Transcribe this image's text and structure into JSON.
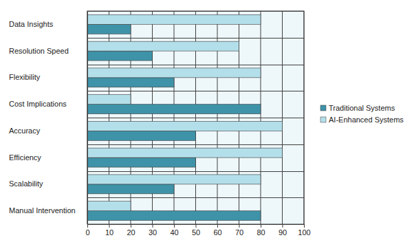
{
  "chart_data": {
    "type": "bar",
    "orientation": "horizontal",
    "categories": [
      "Data Insights",
      "Resolution Speed",
      "Flexibility",
      "Cost Implications",
      "Accuracy",
      "Efficiency",
      "Scalability",
      "Manual Intervention"
    ],
    "series": [
      {
        "name": "Traditional Systems",
        "color": "#3f93a8",
        "values": [
          20,
          30,
          40,
          80,
          50,
          50,
          40,
          80
        ]
      },
      {
        "name": "AI-Enhanced Systems",
        "color": "#b3dfea",
        "values": [
          80,
          70,
          80,
          20,
          90,
          90,
          80,
          20
        ]
      }
    ],
    "xlim": [
      0,
      100
    ],
    "xticks": [
      0,
      10,
      20,
      30,
      40,
      50,
      60,
      70,
      80,
      90,
      100
    ],
    "grid": true,
    "legend": "right"
  }
}
